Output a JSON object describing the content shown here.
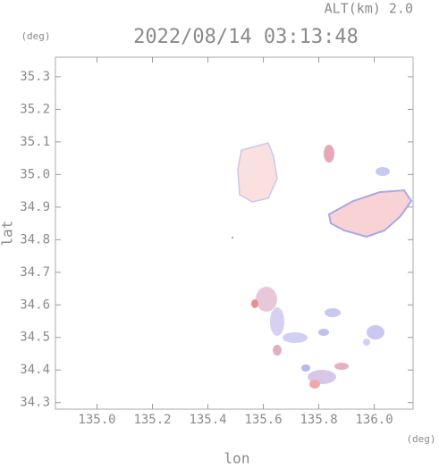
{
  "chart_data": {
    "type": "map",
    "title": "2022/08/14 03:13:48",
    "altitude_label": "ALT(km) 2.0",
    "y_unit": "(deg)",
    "x_unit": "(deg)",
    "xlabel": "lon",
    "ylabel": "lat",
    "xlim": [
      134.85,
      136.14
    ],
    "ylim": [
      34.28,
      35.36
    ],
    "xticks": [
      {
        "value": 135,
        "label": "135.0"
      },
      135.2,
      135.4,
      135.6,
      135.8,
      {
        "value": 136,
        "label": "136.0"
      }
    ],
    "yticks": [
      35.3,
      35.2,
      35.1,
      {
        "value": 35,
        "label": "35.0"
      },
      34.9,
      34.8,
      34.7,
      34.6,
      34.5,
      34.4,
      34.3
    ]
  }
}
